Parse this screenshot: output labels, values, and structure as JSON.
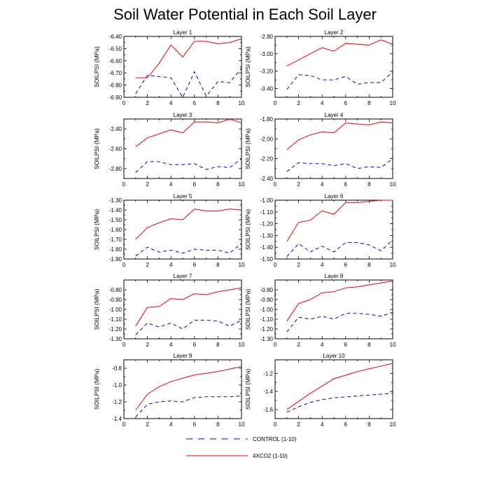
{
  "title": "Soil Water Potential in Each Soil Layer",
  "colors": {
    "control": "#0000cc",
    "co2": "#ee0000",
    "axis": "#000000"
  },
  "legend": [
    {
      "key": "control",
      "label": "CONTROL (1-10)",
      "style": "dashed"
    },
    {
      "key": "co2",
      "label": "4XCO2 (1-10)",
      "style": "solid"
    }
  ],
  "chart_data": [
    {
      "type": "line",
      "title": "Layer 1",
      "ylabel": "SOILPSI  (MPa)",
      "xlim": [
        0,
        10
      ],
      "ylim": [
        -6.9,
        -6.4
      ],
      "xticks": [
        0,
        2,
        4,
        6,
        8,
        10
      ],
      "yticks": [
        -6.4,
        -6.5,
        -6.6,
        -6.7,
        -6.8,
        -6.9
      ],
      "yticklabels": [
        "-6.40",
        "-6.50",
        "-6.60",
        "-6.70",
        "-6.80",
        "-6.90"
      ],
      "x": [
        1,
        2,
        3,
        4,
        5,
        6,
        7,
        8,
        9,
        10
      ],
      "series": [
        {
          "key": "control",
          "values": [
            -6.87,
            -6.72,
            -6.73,
            -6.74,
            -6.9,
            -6.69,
            -6.89,
            -6.77,
            -6.78,
            -6.66
          ]
        },
        {
          "key": "co2",
          "values": [
            -6.74,
            -6.74,
            -6.62,
            -6.47,
            -6.57,
            -6.44,
            -6.44,
            -6.46,
            -6.45,
            -6.42
          ]
        }
      ]
    },
    {
      "type": "line",
      "title": "Layer 2",
      "ylabel": "SOILPSI  (MPa)",
      "xlim": [
        0,
        10
      ],
      "ylim": [
        -3.5,
        -2.8
      ],
      "xticks": [
        0,
        2,
        4,
        6,
        8,
        10
      ],
      "yticks": [
        -2.8,
        -3.0,
        -3.2,
        -3.4
      ],
      "yticklabels": [
        "-2.80",
        "-3.00",
        "-3.20",
        "-3.40"
      ],
      "x": [
        1,
        2,
        3,
        4,
        5,
        6,
        7,
        8,
        9,
        10
      ],
      "series": [
        {
          "key": "control",
          "values": [
            -3.41,
            -3.24,
            -3.25,
            -3.3,
            -3.3,
            -3.26,
            -3.35,
            -3.33,
            -3.33,
            -3.21
          ]
        },
        {
          "key": "co2",
          "values": [
            -3.14,
            -3.07,
            -3.0,
            -2.93,
            -2.97,
            -2.88,
            -2.89,
            -2.9,
            -2.84,
            -2.89
          ]
        }
      ]
    },
    {
      "type": "line",
      "title": "Layer 3",
      "ylabel": "SOILPSI  (MPa)",
      "xlim": [
        0,
        10
      ],
      "ylim": [
        -2.9,
        -2.3
      ],
      "xticks": [
        0,
        2,
        4,
        6,
        8,
        10
      ],
      "yticks": [
        -2.4,
        -2.6,
        -2.8
      ],
      "yticklabels": [
        "-2.40",
        "-2.60",
        "-2.80"
      ],
      "x": [
        1,
        2,
        3,
        4,
        5,
        6,
        7,
        8,
        9,
        10
      ],
      "series": [
        {
          "key": "control",
          "values": [
            -2.84,
            -2.73,
            -2.73,
            -2.76,
            -2.76,
            -2.75,
            -2.81,
            -2.78,
            -2.79,
            -2.7
          ]
        },
        {
          "key": "co2",
          "values": [
            -2.58,
            -2.49,
            -2.45,
            -2.41,
            -2.44,
            -2.33,
            -2.33,
            -2.34,
            -2.3,
            -2.34
          ]
        }
      ]
    },
    {
      "type": "line",
      "title": "Layer 4",
      "ylabel": "SOILPSI  (MPa)",
      "xlim": [
        0,
        10
      ],
      "ylim": [
        -2.4,
        -1.8
      ],
      "xticks": [
        0,
        2,
        4,
        6,
        8,
        10
      ],
      "yticks": [
        -1.8,
        -2.0,
        -2.2,
        -2.4
      ],
      "yticklabels": [
        "-1.80",
        "-2.00",
        "-2.20",
        "-2.40"
      ],
      "x": [
        1,
        2,
        3,
        4,
        5,
        6,
        7,
        8,
        9,
        10
      ],
      "series": [
        {
          "key": "control",
          "values": [
            -2.33,
            -2.24,
            -2.25,
            -2.25,
            -2.27,
            -2.25,
            -2.3,
            -2.28,
            -2.29,
            -2.2
          ]
        },
        {
          "key": "co2",
          "values": [
            -2.11,
            -2.01,
            -1.96,
            -1.93,
            -1.94,
            -1.84,
            -1.85,
            -1.86,
            -1.83,
            -1.84
          ]
        }
      ]
    },
    {
      "type": "line",
      "title": "Layer 5",
      "ylabel": "SOILPSI  (MPa)",
      "xlim": [
        0,
        10
      ],
      "ylim": [
        -1.9,
        -1.3
      ],
      "xticks": [
        0,
        2,
        4,
        6,
        8,
        10
      ],
      "yticks": [
        -1.3,
        -1.4,
        -1.5,
        -1.6,
        -1.7,
        -1.8,
        -1.9
      ],
      "yticklabels": [
        "-1.30",
        "-1.40",
        "-1.50",
        "-1.60",
        "-1.70",
        "-1.80",
        "-1.90"
      ],
      "x": [
        1,
        2,
        3,
        4,
        5,
        6,
        7,
        8,
        9,
        10
      ],
      "series": [
        {
          "key": "control",
          "values": [
            -1.87,
            -1.78,
            -1.83,
            -1.81,
            -1.84,
            -1.8,
            -1.81,
            -1.81,
            -1.84,
            -1.74
          ]
        },
        {
          "key": "co2",
          "values": [
            -1.7,
            -1.58,
            -1.53,
            -1.49,
            -1.5,
            -1.39,
            -1.41,
            -1.41,
            -1.39,
            -1.4
          ]
        }
      ]
    },
    {
      "type": "line",
      "title": "Layer 6",
      "ylabel": "SOILPSI  (MPa)",
      "xlim": [
        0,
        10
      ],
      "ylim": [
        -1.5,
        -1.0
      ],
      "xticks": [
        0,
        2,
        4,
        6,
        8,
        10
      ],
      "yticks": [
        -1.0,
        -1.1,
        -1.2,
        -1.3,
        -1.4,
        -1.5
      ],
      "yticklabels": [
        "-1.00",
        "-1.10",
        "-1.20",
        "-1.30",
        "-1.40",
        "-1.50"
      ],
      "x": [
        1,
        2,
        3,
        4,
        5,
        6,
        7,
        8,
        9,
        10
      ],
      "series": [
        {
          "key": "control",
          "values": [
            -1.48,
            -1.37,
            -1.44,
            -1.39,
            -1.44,
            -1.36,
            -1.36,
            -1.38,
            -1.43,
            -1.34
          ]
        },
        {
          "key": "co2",
          "values": [
            -1.35,
            -1.19,
            -1.17,
            -1.09,
            -1.12,
            -1.02,
            -1.02,
            -1.01,
            -1.0,
            -1.0
          ]
        }
      ]
    },
    {
      "type": "line",
      "title": "Layer 7",
      "ylabel": "SOILPSI  (MPa)",
      "xlim": [
        0,
        10
      ],
      "ylim": [
        -1.3,
        -0.7
      ],
      "xticks": [
        0,
        2,
        4,
        6,
        8,
        10
      ],
      "yticks": [
        -0.8,
        -0.9,
        -1.0,
        -1.1,
        -1.2,
        -1.3
      ],
      "yticklabels": [
        "-0.80",
        "-0.90",
        "-1.00",
        "-1.10",
        "-1.20",
        "-1.30"
      ],
      "x": [
        1,
        2,
        3,
        4,
        5,
        6,
        7,
        8,
        9,
        10
      ],
      "series": [
        {
          "key": "control",
          "values": [
            -1.26,
            -1.14,
            -1.18,
            -1.14,
            -1.2,
            -1.11,
            -1.11,
            -1.12,
            -1.17,
            -1.11
          ]
        },
        {
          "key": "co2",
          "values": [
            -1.17,
            -0.98,
            -0.97,
            -0.89,
            -0.9,
            -0.84,
            -0.85,
            -0.82,
            -0.8,
            -0.78
          ]
        }
      ]
    },
    {
      "type": "line",
      "title": "Layer 8",
      "ylabel": "SOILPSI  (MPa)",
      "xlim": [
        0,
        10
      ],
      "ylim": [
        -1.3,
        -0.7
      ],
      "xticks": [
        0,
        2,
        4,
        6,
        8,
        10
      ],
      "yticks": [
        -0.8,
        -0.9,
        -1.0,
        -1.1,
        -1.2,
        -1.3
      ],
      "yticklabels": [
        "-0.80",
        "-0.90",
        "-1.00",
        "-1.10",
        "-1.20",
        "-1.30"
      ],
      "x": [
        1,
        2,
        3,
        4,
        5,
        6,
        7,
        8,
        9,
        10
      ],
      "series": [
        {
          "key": "control",
          "values": [
            -1.23,
            -1.08,
            -1.1,
            -1.07,
            -1.1,
            -1.04,
            -1.04,
            -1.05,
            -1.07,
            -1.03
          ]
        },
        {
          "key": "co2",
          "values": [
            -1.12,
            -0.94,
            -0.9,
            -0.83,
            -0.82,
            -0.78,
            -0.77,
            -0.75,
            -0.73,
            -0.71
          ]
        }
      ]
    },
    {
      "type": "line",
      "title": "Layer 9",
      "ylabel": "SOILPSI  (MPa)",
      "xlim": [
        0,
        10
      ],
      "ylim": [
        -1.4,
        -0.7
      ],
      "xticks": [
        0,
        2,
        4,
        6,
        8,
        10
      ],
      "yticks": [
        -0.8,
        -1.0,
        -1.2,
        -1.4
      ],
      "yticklabels": [
        "-0.8",
        "-1.0",
        "-1.2",
        "-1.4"
      ],
      "x": [
        1,
        2,
        3,
        4,
        5,
        6,
        7,
        8,
        9,
        10
      ],
      "series": [
        {
          "key": "control",
          "values": [
            -1.38,
            -1.23,
            -1.2,
            -1.19,
            -1.2,
            -1.15,
            -1.14,
            -1.14,
            -1.14,
            -1.13
          ]
        },
        {
          "key": "co2",
          "values": [
            -1.3,
            -1.11,
            -1.02,
            -0.96,
            -0.92,
            -0.88,
            -0.86,
            -0.84,
            -0.81,
            -0.78
          ]
        }
      ]
    },
    {
      "type": "line",
      "title": "Layer 10",
      "ylabel": "SOILPSI  (MPa)",
      "xlim": [
        0,
        10
      ],
      "ylim": [
        -1.7,
        -1.05
      ],
      "xticks": [
        0,
        2,
        4,
        6,
        8,
        10
      ],
      "yticks": [
        -1.2,
        -1.4,
        -1.6
      ],
      "yticklabels": [
        "-1.2",
        "-1.4",
        "-1.6"
      ],
      "x": [
        1,
        2,
        3,
        4,
        5,
        6,
        7,
        8,
        9,
        10
      ],
      "series": [
        {
          "key": "control",
          "values": [
            -1.63,
            -1.57,
            -1.52,
            -1.49,
            -1.47,
            -1.46,
            -1.45,
            -1.44,
            -1.43,
            -1.42
          ]
        },
        {
          "key": "co2",
          "values": [
            -1.6,
            -1.51,
            -1.42,
            -1.34,
            -1.26,
            -1.22,
            -1.18,
            -1.15,
            -1.12,
            -1.09
          ]
        }
      ]
    }
  ]
}
